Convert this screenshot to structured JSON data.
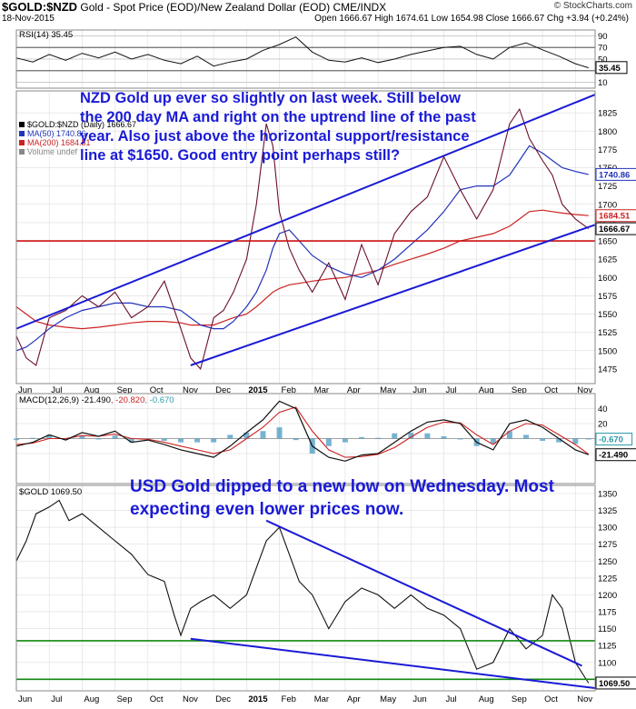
{
  "header": {
    "symbol": "$GOLD:$NZD",
    "description": "Gold - Spot Price (EOD)/New Zealand Dollar (EOD)",
    "exchange": "CME/INDX",
    "watermark": "© StockCharts.com",
    "date": "18-Nov-2015",
    "ohlc": "Open 1666.67 High 1674.61 Low 1654.98 Close 1666.67 Chg +3.94 (+0.24%)"
  },
  "annotations": {
    "nzd_note": "NZD Gold up ever so slightly on last week. Still below the 200 day MA and right on the uptrend line of the past year. Also just above the horizontal support/resistance line at $1650. Good entry point perhaps still?",
    "usd_note": "USD Gold dipped to a new low on Wednesday. Most expecting even lower prices now."
  },
  "chart_data": [
    {
      "type": "line",
      "panel": "rsi",
      "label": "RSI(14) 35.45",
      "ylim": [
        0,
        100
      ],
      "ticks": [
        "90",
        "70",
        "50",
        "30",
        "10"
      ],
      "last_value": "35.45",
      "months": [
        "Jun",
        "Jul",
        "Aug",
        "Sep",
        "Oct",
        "Nov",
        "Dec",
        "2015",
        "Feb",
        "Mar",
        "Apr",
        "May",
        "Jun",
        "Jul",
        "Aug",
        "Sep",
        "Oct",
        "Nov"
      ],
      "x": [
        0,
        0.5,
        1,
        1.5,
        2,
        2.5,
        3,
        3.5,
        4,
        4.5,
        5,
        5.5,
        6,
        6.5,
        7,
        7.5,
        8,
        8.5,
        9,
        9.5,
        10,
        10.5,
        11,
        11.5,
        12,
        12.5,
        13,
        13.5,
        14,
        14.5,
        15,
        15.5,
        16,
        16.5,
        17,
        17.4
      ],
      "values": [
        52,
        45,
        58,
        48,
        60,
        52,
        62,
        50,
        58,
        48,
        42,
        55,
        38,
        45,
        50,
        65,
        75,
        88,
        62,
        48,
        45,
        52,
        44,
        50,
        58,
        64,
        70,
        72,
        58,
        50,
        70,
        78,
        66,
        55,
        42,
        35
      ]
    },
    {
      "type": "line",
      "panel": "nzd_price",
      "legend": [
        {
          "label": "$GOLD:$NZD (Daily) 1666.67",
          "color": "#000000"
        },
        {
          "label": "MA(50) 1740.86",
          "color": "#2233bb"
        },
        {
          "label": "MA(200) 1684.51",
          "color": "#cc2222"
        },
        {
          "label": "Volume undef",
          "color": "#888888"
        }
      ],
      "ylim": [
        1455,
        1855
      ],
      "ticks": [
        1825,
        1800,
        1775,
        1750,
        1725,
        1700,
        1675,
        1650,
        1625,
        1600,
        1575,
        1550,
        1525,
        1500,
        1475
      ],
      "end_labels": [
        {
          "text": "1740.86",
          "value": 1740.86,
          "color": "#2233bb"
        },
        {
          "text": "1684.51",
          "value": 1684.51,
          "color": "#cc2222"
        },
        {
          "text": "1666.67",
          "value": 1666.67,
          "color": "#000000"
        }
      ],
      "months": [
        "Jun",
        "Jul",
        "Aug",
        "Sep",
        "Oct",
        "Nov",
        "Dec",
        "2015",
        "Feb",
        "Mar",
        "Apr",
        "May",
        "Jun",
        "Jul",
        "Aug",
        "Sep",
        "Oct",
        "Nov"
      ],
      "x": [
        0,
        0.3,
        0.6,
        1,
        1.5,
        2,
        2.5,
        3,
        3.5,
        4,
        4.5,
        5,
        5.3,
        5.6,
        6,
        6.3,
        6.6,
        7,
        7.3,
        7.6,
        7.8,
        8,
        8.3,
        8.6,
        9,
        9.5,
        10,
        10.5,
        11,
        11.5,
        12,
        12.5,
        13,
        13.5,
        14,
        14.5,
        15,
        15.3,
        15.6,
        16,
        16.3,
        16.6,
        17,
        17.4
      ],
      "close": [
        1520,
        1490,
        1480,
        1545,
        1555,
        1575,
        1560,
        1580,
        1545,
        1560,
        1595,
        1530,
        1490,
        1475,
        1545,
        1555,
        1580,
        1625,
        1700,
        1810,
        1780,
        1690,
        1640,
        1610,
        1580,
        1620,
        1570,
        1645,
        1590,
        1660,
        1690,
        1710,
        1765,
        1720,
        1680,
        1720,
        1810,
        1830,
        1790,
        1760,
        1740,
        1700,
        1680,
        1666.67
      ],
      "ma50": [
        1500,
        1505,
        1515,
        1530,
        1545,
        1555,
        1560,
        1565,
        1565,
        1560,
        1560,
        1555,
        1545,
        1535,
        1530,
        1530,
        1540,
        1560,
        1580,
        1610,
        1640,
        1660,
        1665,
        1650,
        1630,
        1615,
        1605,
        1600,
        1610,
        1625,
        1645,
        1665,
        1690,
        1720,
        1725,
        1725,
        1740,
        1760,
        1780,
        1770,
        1760,
        1750,
        1745,
        1740.86
      ],
      "ma200": [
        1560,
        1550,
        1540,
        1535,
        1532,
        1530,
        1532,
        1535,
        1538,
        1540,
        1540,
        1538,
        1535,
        1535,
        1535,
        1540,
        1545,
        1550,
        1560,
        1572,
        1580,
        1585,
        1590,
        1592,
        1595,
        1598,
        1600,
        1605,
        1610,
        1618,
        1625,
        1632,
        1640,
        1650,
        1655,
        1660,
        1670,
        1680,
        1690,
        1692,
        1690,
        1688,
        1686,
        1684.51
      ]
    },
    {
      "type": "line",
      "panel": "macd",
      "label": "MACD(12,26,9)",
      "label_values": [
        {
          "text": "-21.490",
          "color": "#000000"
        },
        {
          "text": "-20.820",
          "color": "#cc2222"
        },
        {
          "text": "-0.670",
          "color": "#2a9aaa"
        }
      ],
      "ylim": [
        -60,
        60
      ],
      "ticks": [
        "40",
        "20",
        "0",
        "-20"
      ],
      "end_labels": [
        {
          "text": "-0.670",
          "value": -0.67,
          "color": "#2a9aaa"
        },
        {
          "text": "-21.490",
          "value": -21.49,
          "color": "#000000"
        }
      ],
      "x": [
        0,
        0.5,
        1,
        1.5,
        2,
        2.5,
        3,
        3.5,
        4,
        4.5,
        5,
        5.5,
        6,
        6.5,
        7,
        7.5,
        8,
        8.5,
        9,
        9.5,
        10,
        10.5,
        11,
        11.5,
        12,
        12.5,
        13,
        13.5,
        14,
        14.5,
        15,
        15.5,
        16,
        16.5,
        17,
        17.4
      ],
      "macd": [
        -10,
        -5,
        5,
        -2,
        8,
        3,
        10,
        -5,
        -2,
        -8,
        -15,
        -20,
        -25,
        -10,
        8,
        25,
        50,
        40,
        -10,
        -25,
        -30,
        -22,
        -20,
        -5,
        10,
        22,
        25,
        20,
        -5,
        -15,
        20,
        25,
        15,
        0,
        -15,
        -21.49
      ],
      "signal": [
        -8,
        -6,
        0,
        0,
        4,
        3,
        6,
        0,
        -1,
        -5,
        -10,
        -15,
        -20,
        -15,
        0,
        15,
        35,
        42,
        10,
        -15,
        -25,
        -24,
        -21,
        -12,
        2,
        15,
        22,
        21,
        5,
        -8,
        10,
        20,
        18,
        5,
        -8,
        -20.82
      ]
    },
    {
      "type": "line",
      "panel": "usd_price",
      "label": "$GOLD 1069.50",
      "ylim": [
        1058,
        1362
      ],
      "ticks": [
        1350,
        1325,
        1300,
        1275,
        1250,
        1225,
        1200,
        1175,
        1150,
        1125,
        1100,
        1075
      ],
      "end_labels": [
        {
          "text": "1069.50",
          "value": 1069.5,
          "color": "#000000"
        }
      ],
      "months": [
        "Jun",
        "Jul",
        "Aug",
        "Sep",
        "Oct",
        "Nov",
        "Dec",
        "2015",
        "Feb",
        "Mar",
        "Apr",
        "May",
        "Jun",
        "Jul",
        "Aug",
        "Sep",
        "Oct",
        "Nov"
      ],
      "x": [
        0,
        0.3,
        0.6,
        1,
        1.3,
        1.6,
        2,
        2.5,
        3,
        3.5,
        4,
        4.5,
        4.8,
        5,
        5.3,
        5.6,
        6,
        6.5,
        7,
        7.3,
        7.6,
        8,
        8.3,
        8.6,
        9,
        9.5,
        10,
        10.5,
        11,
        11.5,
        12,
        12.5,
        13,
        13.5,
        14,
        14.5,
        15,
        15.5,
        16,
        16.3,
        16.6,
        17,
        17.4
      ],
      "values": [
        1250,
        1280,
        1320,
        1330,
        1340,
        1310,
        1320,
        1300,
        1280,
        1260,
        1230,
        1220,
        1170,
        1140,
        1180,
        1190,
        1200,
        1180,
        1200,
        1240,
        1280,
        1300,
        1260,
        1220,
        1200,
        1150,
        1190,
        1210,
        1200,
        1180,
        1200,
        1180,
        1170,
        1150,
        1090,
        1100,
        1150,
        1120,
        1140,
        1200,
        1180,
        1100,
        1069.5
      ]
    }
  ],
  "trendlines": {
    "nzd_upper_channel": [
      [
        0,
        1530
      ],
      [
        17.6,
        1850
      ]
    ],
    "nzd_lower_channel": [
      [
        5.3,
        1480
      ],
      [
        17.6,
        1672
      ]
    ],
    "nzd_support_level": 1650,
    "usd_down_channel_upper": [
      [
        7.6,
        1310
      ],
      [
        17.2,
        1095
      ]
    ],
    "usd_down_channel_lower": [
      [
        5.3,
        1135
      ],
      [
        17.6,
        1062
      ]
    ],
    "usd_resistance_level": 1132,
    "usd_support_level": 1075
  }
}
